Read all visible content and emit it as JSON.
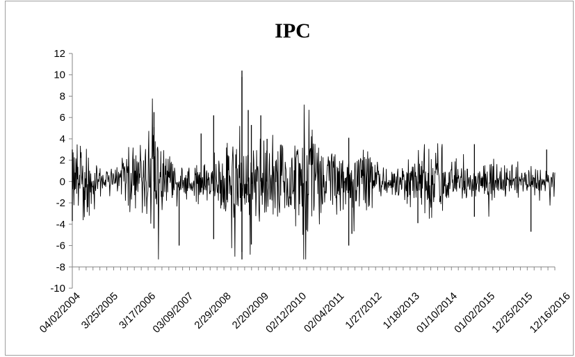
{
  "chart_data": {
    "type": "line",
    "title": "IPC",
    "xlabel": "",
    "ylabel": "",
    "ylim": [
      -10,
      12
    ],
    "y_ticks": [
      -10,
      -8,
      -6,
      -4,
      -2,
      0,
      2,
      4,
      6,
      8,
      10,
      12
    ],
    "x_tick_labels": [
      "04/02/2004",
      "3/25/2005",
      "3/17/2006",
      "03/09/2007",
      "2/29/2008",
      "2/20/2009",
      "02/12/2010",
      "02/04/2011",
      "1/27/2012",
      "1/18/2013",
      "01/10/2014",
      "01/02/2015",
      "12/25/2015",
      "12/16/2016"
    ],
    "grid": false,
    "legend": "none",
    "line_color": "#000000",
    "series": [
      {
        "x": [
          "04/02/2004",
          "3/25/2005",
          "3/17/2006",
          "03/09/2007",
          "2/29/2008",
          "2/20/2009",
          "02/12/2010",
          "02/04/2011",
          "1/27/2012",
          "1/18/2013",
          "01/10/2014",
          "01/02/2015",
          "12/25/2015",
          "12/16/2016"
        ],
        "values": [
          0.3,
          -0.6,
          0.8,
          0.4,
          -1.2,
          2.1,
          -0.4,
          0.5,
          -0.2,
          0.3,
          -0.5,
          0.6,
          -0.3,
          0.2
        ]
      }
    ],
    "notable_extremes": [
      {
        "x": "04/2004",
        "y": 3.0
      },
      {
        "x": "04/2004",
        "y": -3.7
      },
      {
        "x": "06/2006",
        "y": 6.5
      },
      {
        "x": "06/2006",
        "y": 5.1
      },
      {
        "x": "06/2006",
        "y": -4.4
      },
      {
        "x": "02/2007",
        "y": -6.0
      },
      {
        "x": "09/2007",
        "y": 4.5
      },
      {
        "x": "01/2008",
        "y": 6.2
      },
      {
        "x": "01/2008",
        "y": -5.4
      },
      {
        "x": "10/2008",
        "y": 10.4
      },
      {
        "x": "10/2008",
        "y": 9.8
      },
      {
        "x": "10/2008",
        "y": -7.3
      },
      {
        "x": "10/2008",
        "y": -6.6
      },
      {
        "x": "12/2008",
        "y": 6.7
      },
      {
        "x": "01/2009",
        "y": 5.3
      },
      {
        "x": "01/2009",
        "y": -5.9
      },
      {
        "x": "04/2009",
        "y": 6.2
      },
      {
        "x": "06/2009",
        "y": 4.0
      },
      {
        "x": "08/2011",
        "y": 4.1
      },
      {
        "x": "08/2011",
        "y": -6.0
      },
      {
        "x": "09/2011",
        "y": -4.9
      },
      {
        "x": "06/2013",
        "y": -3.9
      },
      {
        "x": "12/2014",
        "y": 3.5
      },
      {
        "x": "12/2014",
        "y": -3.3
      },
      {
        "x": "06/2016",
        "y": -4.7
      },
      {
        "x": "11/2016",
        "y": 3.0
      }
    ]
  }
}
